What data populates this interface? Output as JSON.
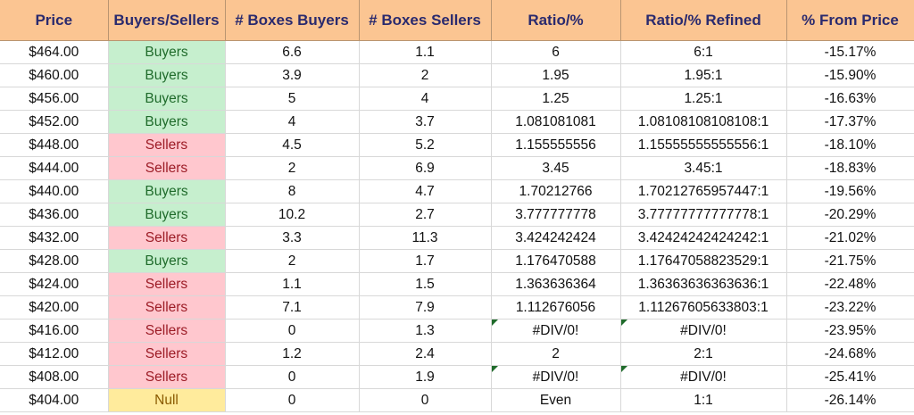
{
  "headers": [
    "Price",
    "Buyers/Sellers",
    "# Boxes Buyers",
    "# Boxes Sellers",
    "Ratio/%",
    "Ratio/% Refined",
    "% From Price"
  ],
  "rows": [
    {
      "price": "$464.00",
      "side": "Buyers",
      "kind": "buyers",
      "boxes_buyers": "6.6",
      "boxes_sellers": "1.1",
      "ratio": "6",
      "ratio_refined": "6:1",
      "from_price": "-15.17%",
      "flag": false
    },
    {
      "price": "$460.00",
      "side": "Buyers",
      "kind": "buyers",
      "boxes_buyers": "3.9",
      "boxes_sellers": "2",
      "ratio": "1.95",
      "ratio_refined": "1.95:1",
      "from_price": "-15.90%",
      "flag": false
    },
    {
      "price": "$456.00",
      "side": "Buyers",
      "kind": "buyers",
      "boxes_buyers": "5",
      "boxes_sellers": "4",
      "ratio": "1.25",
      "ratio_refined": "1.25:1",
      "from_price": "-16.63%",
      "flag": false
    },
    {
      "price": "$452.00",
      "side": "Buyers",
      "kind": "buyers",
      "boxes_buyers": "4",
      "boxes_sellers": "3.7",
      "ratio": "1.081081081",
      "ratio_refined": "1.08108108108108:1",
      "from_price": "-17.37%",
      "flag": false
    },
    {
      "price": "$448.00",
      "side": "Sellers",
      "kind": "sellers",
      "boxes_buyers": "4.5",
      "boxes_sellers": "5.2",
      "ratio": "1.155555556",
      "ratio_refined": "1.15555555555556:1",
      "from_price": "-18.10%",
      "flag": false
    },
    {
      "price": "$444.00",
      "side": "Sellers",
      "kind": "sellers",
      "boxes_buyers": "2",
      "boxes_sellers": "6.9",
      "ratio": "3.45",
      "ratio_refined": "3.45:1",
      "from_price": "-18.83%",
      "flag": false
    },
    {
      "price": "$440.00",
      "side": "Buyers",
      "kind": "buyers",
      "boxes_buyers": "8",
      "boxes_sellers": "4.7",
      "ratio": "1.70212766",
      "ratio_refined": "1.70212765957447:1",
      "from_price": "-19.56%",
      "flag": false
    },
    {
      "price": "$436.00",
      "side": "Buyers",
      "kind": "buyers",
      "boxes_buyers": "10.2",
      "boxes_sellers": "2.7",
      "ratio": "3.777777778",
      "ratio_refined": "3.77777777777778:1",
      "from_price": "-20.29%",
      "flag": false
    },
    {
      "price": "$432.00",
      "side": "Sellers",
      "kind": "sellers",
      "boxes_buyers": "3.3",
      "boxes_sellers": "11.3",
      "ratio": "3.424242424",
      "ratio_refined": "3.42424242424242:1",
      "from_price": "-21.02%",
      "flag": false
    },
    {
      "price": "$428.00",
      "side": "Buyers",
      "kind": "buyers",
      "boxes_buyers": "2",
      "boxes_sellers": "1.7",
      "ratio": "1.176470588",
      "ratio_refined": "1.17647058823529:1",
      "from_price": "-21.75%",
      "flag": false
    },
    {
      "price": "$424.00",
      "side": "Sellers",
      "kind": "sellers",
      "boxes_buyers": "1.1",
      "boxes_sellers": "1.5",
      "ratio": "1.363636364",
      "ratio_refined": "1.36363636363636:1",
      "from_price": "-22.48%",
      "flag": false
    },
    {
      "price": "$420.00",
      "side": "Sellers",
      "kind": "sellers",
      "boxes_buyers": "7.1",
      "boxes_sellers": "7.9",
      "ratio": "1.112676056",
      "ratio_refined": "1.11267605633803:1",
      "from_price": "-23.22%",
      "flag": false
    },
    {
      "price": "$416.00",
      "side": "Sellers",
      "kind": "sellers",
      "boxes_buyers": "0",
      "boxes_sellers": "1.3",
      "ratio": "#DIV/0!",
      "ratio_refined": "#DIV/0!",
      "from_price": "-23.95%",
      "flag": true
    },
    {
      "price": "$412.00",
      "side": "Sellers",
      "kind": "sellers",
      "boxes_buyers": "1.2",
      "boxes_sellers": "2.4",
      "ratio": "2",
      "ratio_refined": "2:1",
      "from_price": "-24.68%",
      "flag": false
    },
    {
      "price": "$408.00",
      "side": "Sellers",
      "kind": "sellers",
      "boxes_buyers": "0",
      "boxes_sellers": "1.9",
      "ratio": "#DIV/0!",
      "ratio_refined": "#DIV/0!",
      "from_price": "-25.41%",
      "flag": true
    },
    {
      "price": "$404.00",
      "side": "Null",
      "kind": "null",
      "boxes_buyers": "0",
      "boxes_sellers": "0",
      "ratio": "Even",
      "ratio_refined": "1:1",
      "from_price": "-26.14%",
      "flag": false
    }
  ],
  "colors": {
    "header_bg": "#fbc592",
    "header_text": "#2a2a6e",
    "buyers_bg": "#c6efce",
    "buyers_text": "#1f6b2b",
    "sellers_bg": "#ffc7ce",
    "sellers_text": "#9c1c26",
    "null_bg": "#ffeb9c",
    "null_text": "#8a5a00",
    "error_indicator": "#1f6b2b"
  }
}
